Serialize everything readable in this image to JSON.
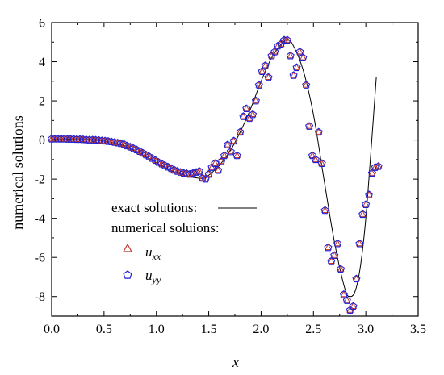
{
  "chart_data": {
    "type": "scatter",
    "xlabel": "x",
    "ylabel": "numerical solutions",
    "xlim": [
      0.0,
      3.5
    ],
    "ylim": [
      -9,
      6
    ],
    "xticks": [
      "0.0",
      "0.5",
      "1.0",
      "1.5",
      "2.0",
      "2.5",
      "3.0",
      "3.5"
    ],
    "yticks": [
      "6",
      "4",
      "2",
      "0",
      "-2",
      "-4",
      "-6",
      "-8"
    ],
    "grid": false,
    "legend": {
      "placement": "lower-left",
      "exact_label": "exact solutions:",
      "numerical_label": "numerical soluions:",
      "uxx_base": "u",
      "uxx_sub": "xx",
      "uyy_base": "u",
      "uyy_sub": "yy"
    },
    "colors": {
      "exact_line": "#000000",
      "uxx_marker": "#c0392b",
      "uyy_marker": "#1f1fd6"
    },
    "exact_solution": {
      "x": [
        0.0,
        0.1,
        0.2,
        0.3,
        0.4,
        0.5,
        0.6,
        0.7,
        0.8,
        0.9,
        1.0,
        1.1,
        1.2,
        1.3,
        1.4,
        1.45,
        1.5,
        1.6,
        1.7,
        1.8,
        1.9,
        2.0,
        2.1,
        2.2,
        2.25,
        2.3,
        2.4,
        2.5,
        2.6,
        2.7,
        2.8,
        2.85,
        2.9,
        2.95,
        3.0,
        3.05,
        3.1
      ],
      "y": [
        0.05,
        0.05,
        0.04,
        0.03,
        0.0,
        -0.05,
        -0.15,
        -0.3,
        -0.55,
        -0.85,
        -1.15,
        -1.45,
        -1.7,
        -1.85,
        -1.95,
        -1.95,
        -1.8,
        -1.3,
        -0.6,
        0.4,
        1.6,
        3.0,
        4.2,
        4.95,
        5.1,
        4.9,
        3.6,
        1.3,
        -2.0,
        -5.2,
        -7.6,
        -8.0,
        -7.7,
        -6.4,
        -4.0,
        -0.5,
        3.2
      ]
    },
    "uxx": {
      "x": [
        0.0,
        0.03,
        0.06,
        0.09,
        0.12,
        0.15,
        0.18,
        0.21,
        0.24,
        0.27,
        0.3,
        0.33,
        0.36,
        0.39,
        0.42,
        0.45,
        0.48,
        0.51,
        0.54,
        0.57,
        0.6,
        0.63,
        0.66,
        0.69,
        0.72,
        0.75,
        0.78,
        0.81,
        0.84,
        0.87,
        0.9,
        0.93,
        0.96,
        0.99,
        1.02,
        1.05,
        1.08,
        1.11,
        1.14,
        1.17,
        1.2,
        1.23,
        1.26,
        1.29,
        1.32,
        1.35,
        1.38,
        1.41,
        1.44,
        1.47,
        1.5,
        1.53,
        1.56,
        1.59,
        1.62,
        1.65,
        1.68,
        1.71,
        1.74,
        1.77,
        1.8,
        1.83,
        1.86,
        1.89,
        1.92,
        1.95,
        1.98,
        2.01,
        2.04,
        2.07,
        2.1,
        2.13,
        2.16,
        2.19,
        2.22,
        2.25,
        2.28,
        2.31,
        2.34,
        2.37,
        2.4,
        2.43,
        2.46,
        2.49,
        2.52,
        2.55,
        2.58,
        2.61,
        2.64,
        2.67,
        2.7,
        2.73,
        2.76,
        2.79,
        2.82,
        2.85,
        2.88,
        2.91,
        2.94,
        2.97,
        3.0,
        3.03,
        3.06,
        3.09,
        3.12
      ],
      "y": [
        0.05,
        0.05,
        0.05,
        0.05,
        0.05,
        0.04,
        0.04,
        0.04,
        0.03,
        0.03,
        0.02,
        0.01,
        0.0,
        0.0,
        -0.01,
        -0.02,
        -0.04,
        -0.05,
        -0.07,
        -0.09,
        -0.12,
        -0.15,
        -0.18,
        -0.22,
        -0.3,
        -0.36,
        -0.43,
        -0.5,
        -0.58,
        -0.67,
        -0.76,
        -0.85,
        -0.94,
        -1.04,
        -1.14,
        -1.22,
        -1.3,
        -1.38,
        -1.46,
        -1.54,
        -1.6,
        -1.65,
        -1.7,
        -1.72,
        -1.75,
        -1.7,
        -1.65,
        -1.6,
        -1.95,
        -2.0,
        -1.75,
        -1.4,
        -1.2,
        -1.55,
        -1.1,
        -0.8,
        -0.25,
        -0.6,
        -0.05,
        -0.8,
        0.4,
        1.2,
        1.6,
        1.1,
        1.3,
        2.0,
        2.8,
        3.5,
        3.8,
        3.2,
        4.3,
        4.5,
        4.8,
        4.9,
        5.1,
        5.1,
        4.3,
        3.3,
        3.7,
        4.5,
        4.2,
        2.8,
        0.7,
        -0.8,
        -1.0,
        0.4,
        -1.2,
        -3.6,
        -5.5,
        -6.2,
        -5.9,
        -5.3,
        -6.6,
        -7.9,
        -8.2,
        -8.7,
        -8.5,
        -7.1,
        -5.3,
        -3.8,
        -3.3,
        -2.8,
        -1.7,
        -1.4,
        -1.35
      ]
    }
  }
}
